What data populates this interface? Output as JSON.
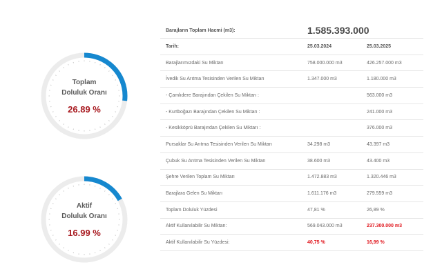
{
  "colors": {
    "accent": "#1688cf",
    "track": "#ececec",
    "value_red": "#a8191f",
    "highlight_red": "#e0141b"
  },
  "gauges": [
    {
      "title_line1": "Toplam",
      "title_line2": "Doluluk Oranı",
      "value_text": "26.89 %",
      "percent": 26.89
    },
    {
      "title_line1": "Aktif",
      "title_line2": "Doluluk Oranı",
      "value_text": "16.99 %",
      "percent": 16.99
    }
  ],
  "table": {
    "total_volume_label": "Barajların Toplam Hacmi (m3):",
    "total_volume_value": "1.585.393.000",
    "date_label": "Tarih:",
    "date_1": "25.03.2024",
    "date_2": "25.03.2025",
    "rows": [
      {
        "label": "Barajlarımızdaki Su Miktarı",
        "v1": "758.000.000 m3",
        "v2": "426.257.000 m3",
        "highlight": false
      },
      {
        "label": "İvedik Su Arıtma Tesisinden Verilen Su Miktarı",
        "v1": "1.347.000 m3",
        "v2": "1.180.000 m3",
        "highlight": false
      },
      {
        "label": "- Çamlıdere Barajından Çekilen Su Miktarı :",
        "v1": "",
        "v2": "563.000 m3",
        "highlight": false
      },
      {
        "label": "- Kurtboğazı Barajından Çekilen Su Miktarı :",
        "v1": "",
        "v2": "241.000 m3",
        "highlight": false
      },
      {
        "label": "- Kesikköprü Barajından Çekilen Su Miktarı :",
        "v1": "",
        "v2": "376.000 m3",
        "highlight": false
      },
      {
        "label": "Pursaklar Su Arıtma Tesisinden Verilen Su Miktarı",
        "v1": "34.298 m3",
        "v2": "43.397 m3",
        "highlight": false
      },
      {
        "label": "Çubuk Su Arıtma Tesisinden Verilen Su Miktarı",
        "v1": "38.600 m3",
        "v2": "43.400 m3",
        "highlight": false
      },
      {
        "label": "Şehre Verilen Toplam Su Miktarı",
        "v1": "1.472.883 m3",
        "v2": "1.320.446 m3",
        "highlight": false
      },
      {
        "label": "Barajlara Gelen Su Miktarı",
        "v1": "1.611.176 m3",
        "v2": "279.559 m3",
        "highlight": false
      },
      {
        "label": "Toplam Doluluk Yüzdesi",
        "v1": "47,81 %",
        "v2": "26,89 %",
        "highlight": false
      },
      {
        "label": "Aktif Kullanılabilir Su Miktarı:",
        "v1": "569.043.000 m3",
        "v2": "237.300.000 m3",
        "highlight": "v2"
      },
      {
        "label": "Aktif Kullanılabilir Su Yüzdesi:",
        "v1": "40,75 %",
        "v2": "16,99 %",
        "highlight": "both"
      }
    ]
  }
}
